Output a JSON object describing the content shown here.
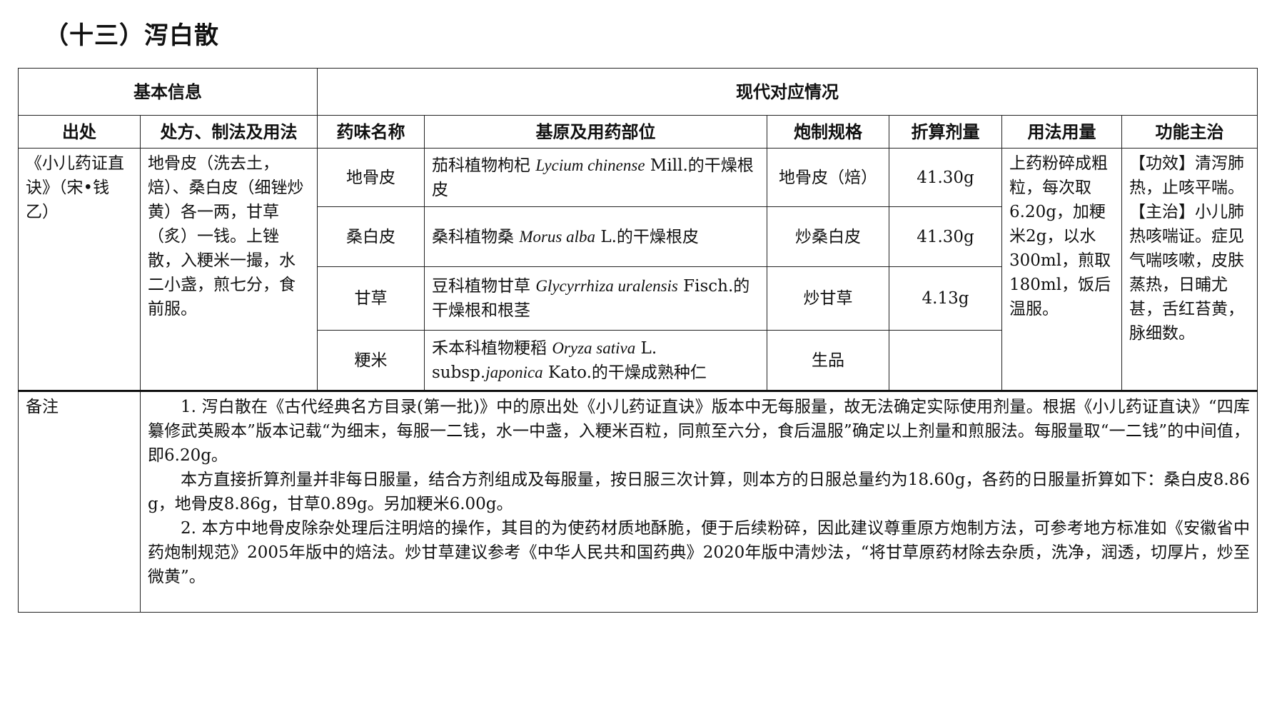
{
  "title": "（十三）泻白散",
  "headers": {
    "basic": "基本信息",
    "modern": "现代对应情况",
    "source": "出处",
    "prescription": "处方、制法及用法",
    "herb": "药味名称",
    "origin": "基原及用药部位",
    "processing": "炮制规格",
    "dose": "折算剂量",
    "usage": "用法用量",
    "function": "功能主治"
  },
  "source": "《小儿药证直诀》（宋•钱乙）",
  "prescription": "地骨皮（洗去土，焙）、桑白皮（细锉炒黄）各一两，甘草（炙）一钱。上锉散，入粳米一撮，水二小盏，煎七分，食前服。",
  "rows": [
    {
      "herb": "地骨皮",
      "origin_pre": "茄科植物枸杞 ",
      "latin": "Lycium chinense",
      "origin_post": " Mill.的干燥根皮",
      "processing": "地骨皮（焙）",
      "dose": "41.30g"
    },
    {
      "herb": "桑白皮",
      "origin_pre": "桑科植物桑 ",
      "latin": "Morus alba",
      "origin_post": " L.的干燥根皮",
      "processing": "炒桑白皮",
      "dose": "41.30g"
    },
    {
      "herb": "甘草",
      "origin_pre": "豆科植物甘草 ",
      "latin": "Glycyrrhiza uralensis",
      "origin_post": " Fisch.的干燥根和根茎",
      "processing": "炒甘草",
      "dose": "4.13g"
    },
    {
      "herb": "粳米",
      "origin_pre": "禾本科植物粳稻 ",
      "latin": "Oryza sativa",
      "origin_post": " L. subsp.",
      "latin2": "japonica",
      "origin_post2": " Kato.的干燥成熟种仁",
      "processing": "生品",
      "dose": ""
    }
  ],
  "usage": "上药粉碎成粗粒，每次取6.20g，加粳米2g，以水300ml，煎取180ml，饭后温服。",
  "function": {
    "effect": "【功效】清泻肺热，止咳平喘。",
    "indication": "【主治】小儿肺热咳喘证。症见气喘咳嗽，皮肤蒸热，日晡尤甚，舌红苔黄，脉细数。"
  },
  "notes_label": "备注",
  "notes": [
    "1. 泻白散在《古代经典名方目录(第一批)》中的原出处《小儿药证直诀》版本中无每服量，故无法确定实际使用剂量。根据《小儿药证直诀》“四库纂修武英殿本”版本记载“为细末，每服一二钱，水一中盏，入粳米百粒，同煎至六分，食后温服”确定以上剂量和煎服法。每服量取“一二钱”的中间值，即6.20g。",
    "本方直接折算剂量并非每日服量，结合方剂组成及每服量，按日服三次计算，则本方的日服总量约为18.60g，各药的日服量折算如下：桑白皮8.86 g，地骨皮8.86g，甘草0.89g。另加粳米6.00g。",
    "2. 本方中地骨皮除杂处理后注明焙的操作，其目的为使药材质地酥脆，便于后续粉碎，因此建议尊重原方炮制方法，可参考地方标准如《安徽省中药炮制规范》2005年版中的焙法。炒甘草建议参考《中华人民共和国药典》2020年版中清炒法，“将甘草原药材除去杂质，洗净，润透，切厚片，炒至微黄”。"
  ]
}
